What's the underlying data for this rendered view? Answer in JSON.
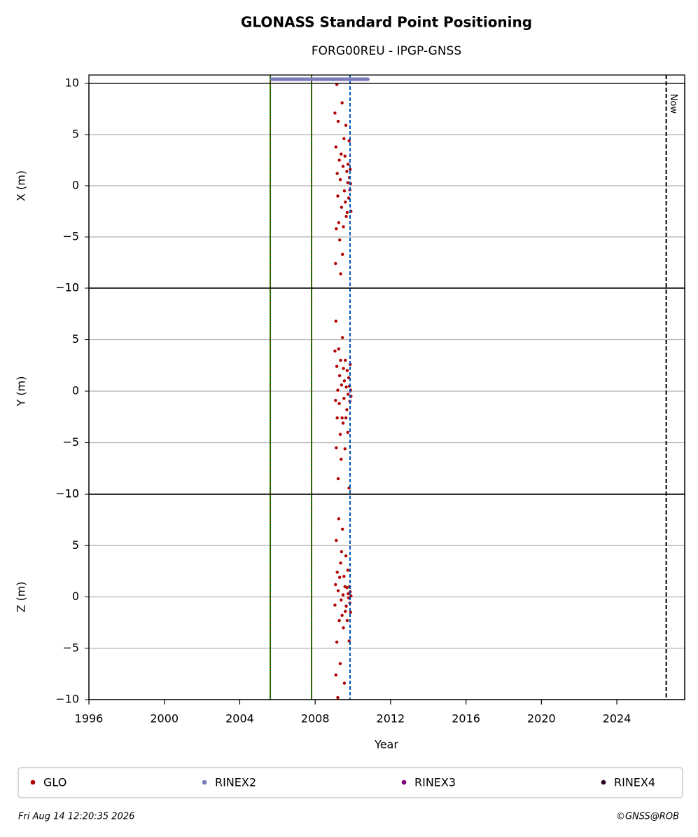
{
  "chart_data": {
    "type": "scatter",
    "title": "GLONASS Standard Point Positioning",
    "subtitle": "FORG00REU - IPGP-GNSS",
    "xlabel": "Year",
    "xlim": [
      1996,
      2027.6
    ],
    "xticks": [
      1996,
      2000,
      2004,
      2008,
      2012,
      2016,
      2020,
      2024
    ],
    "grid": true,
    "legend_position": "bottom",
    "x": [
      2009.05,
      2009.08,
      2009.1,
      2009.12,
      2009.15,
      2009.17,
      2009.2,
      2009.22,
      2009.25,
      2009.28,
      2009.3,
      2009.33,
      2009.35,
      2009.38,
      2009.4,
      2009.43,
      2009.45,
      2009.48,
      2009.5,
      2009.53,
      2009.55,
      2009.58,
      2009.6,
      2009.63,
      2009.65,
      2009.68,
      2009.7,
      2009.73,
      2009.75,
      2009.78,
      2009.8,
      2009.82,
      2009.84,
      2009.86,
      2009.88,
      2009.9
    ],
    "series": [
      {
        "name": "GLO",
        "color": "#b00000"
      },
      {
        "name": "RINEX2",
        "color": "#7b7bbb",
        "start": 2005.7,
        "end": 2010.8
      },
      {
        "name": "RINEX3",
        "color": "#7b007b"
      },
      {
        "name": "RINEX4",
        "color": "#2b0020"
      }
    ],
    "panels": [
      {
        "ylabel": "X (m)",
        "ylim": [
          -10,
          10
        ],
        "yticks": [
          {
            "value": -10,
            "label": "−10"
          },
          {
            "value": -5,
            "label": "−5"
          },
          0,
          5,
          10
        ],
        "values": [
          7.1,
          -7.6,
          3.8,
          -4.2,
          9.9,
          1.2,
          -1.0,
          6.3,
          -3.6,
          2.5,
          -5.3,
          0.6,
          -8.6,
          3.1,
          -2.1,
          8.1,
          -6.7,
          1.9,
          -4.0,
          4.6,
          -0.5,
          2.9,
          -1.6,
          5.9,
          -3.0,
          1.4,
          -2.6,
          0.3,
          2.1,
          -1.2,
          4.4,
          0.8,
          -0.4,
          1.6,
          0.2,
          -2.5
        ]
      },
      {
        "ylabel": "Y (m)",
        "ylim": [
          -10,
          10
        ],
        "yticks": [
          {
            "value": -10,
            "label": "−10"
          },
          {
            "value": -5,
            "label": "−5"
          },
          0,
          5,
          10
        ],
        "values": [
          3.9,
          -0.9,
          6.8,
          -5.5,
          2.4,
          -2.6,
          0.1,
          -8.5,
          4.1,
          -1.2,
          1.5,
          -4.2,
          3.0,
          -6.6,
          0.6,
          -2.6,
          5.2,
          -3.1,
          2.2,
          -0.7,
          1.0,
          -5.6,
          3.0,
          -2.6,
          0.4,
          -1.8,
          2.0,
          -4.0,
          -0.3,
          1.3,
          -9.4,
          0.5,
          -1.0,
          2.6,
          0.1,
          -0.5
        ]
      },
      {
        "ylabel": "Z (m)",
        "ylim": [
          -10,
          10
        ],
        "yticks": [
          {
            "value": -10,
            "label": "−10"
          },
          {
            "value": -5,
            "label": "−5"
          },
          0,
          5,
          10
        ],
        "values": [
          -0.8,
          1.2,
          -7.6,
          5.5,
          -4.4,
          2.4,
          -9.8,
          0.6,
          7.6,
          -2.3,
          1.9,
          -6.5,
          3.3,
          -0.3,
          4.4,
          -1.8,
          6.6,
          0.2,
          -3.0,
          2.0,
          -8.4,
          1.0,
          -1.4,
          4.0,
          -0.9,
          0.9,
          -2.3,
          2.6,
          0.3,
          -0.1,
          -4.3,
          1.0,
          -0.6,
          0.5,
          -1.5,
          0.1
        ]
      }
    ],
    "vlines": [
      {
        "x": 2005.62,
        "color": "#008000",
        "dash_color": "#cc0000"
      },
      {
        "x": 2007.81,
        "color": "#008000",
        "dash_color": "#cc0000"
      },
      {
        "x": 2009.85,
        "color": "#0055bb"
      }
    ],
    "now": {
      "label": "Now",
      "x": 2026.62
    },
    "footer_left": "Fri Aug 14 12:20:35 2026",
    "footer_right": "©GNSS@ROB"
  }
}
